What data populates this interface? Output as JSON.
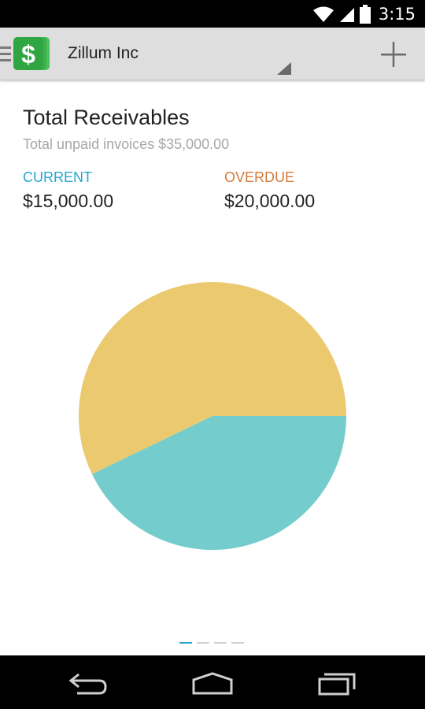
{
  "status_bar": {
    "time": "3:15",
    "icons": [
      "wifi-icon",
      "signal-icon",
      "battery-icon"
    ]
  },
  "action_bar": {
    "app_icon": "dollar-icon",
    "org_name": "Zillum Inc",
    "add_icon": "plus-icon"
  },
  "summary": {
    "title": "Total Receivables",
    "subtitle": "Total unpaid invoices $35,000.00",
    "current_label": "CURRENT",
    "current_value": "$15,000.00",
    "overdue_label": "OVERDUE",
    "overdue_value": "$20,000.00"
  },
  "colors": {
    "current": "#26a5d1",
    "overdue": "#d27a3a",
    "slice_current": "#74cdcc",
    "slice_overdue": "#ebc96e"
  },
  "chart_data": {
    "type": "pie",
    "title": "",
    "slices": [
      {
        "name": "Current",
        "value": 15000,
        "color": "#74cdcc"
      },
      {
        "name": "Overdue",
        "value": 20000,
        "color": "#ebc96e"
      }
    ]
  },
  "pager": {
    "pages": 4,
    "active": 0
  },
  "nav_bar": {
    "icons": [
      "back-icon",
      "home-icon",
      "recents-icon"
    ]
  }
}
